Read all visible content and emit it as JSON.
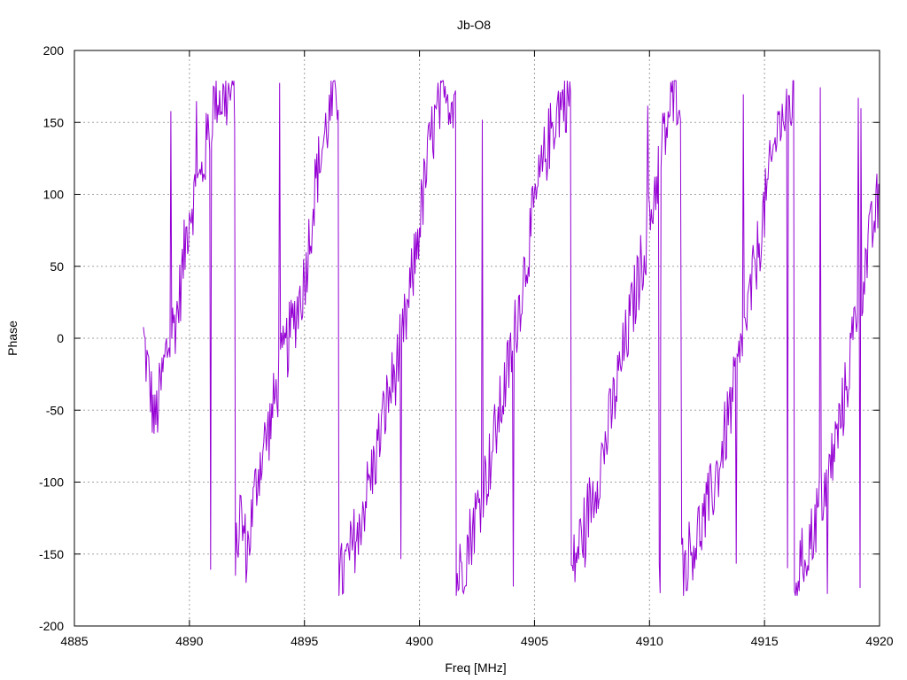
{
  "chart_data": {
    "type": "line",
    "title": "Jb-O8",
    "xlabel": "Freq [MHz]",
    "ylabel": "Phase",
    "xlim": [
      4885,
      4920
    ],
    "ylim": [
      -200,
      200
    ],
    "x_ticks": [
      "4885",
      "4890",
      "4895",
      "4900",
      "4905",
      "4910",
      "4915",
      "4920"
    ],
    "y_ticks": [
      "200",
      "150",
      "100",
      "50",
      "0",
      "-50",
      "-100",
      "-150",
      "-200"
    ],
    "grid": true,
    "line_color": "#9400d3",
    "series": [
      {
        "x": [
          4888.0,
          4888.5,
          4889.0,
          4889.5,
          4890.0,
          4890.5,
          4891.0,
          4891.2,
          4891.5,
          4891.9,
          4892.0,
          4892.2,
          4892.5,
          4893.0,
          4893.5,
          4894.0,
          4894.5,
          4895.0,
          4895.5,
          4896.0,
          4896.4,
          4896.5,
          4897.0,
          4897.5,
          4898.0,
          4898.5,
          4899.0,
          4899.5,
          4900.0,
          4900.5,
          4901.0,
          4901.5,
          4901.6,
          4902.0,
          4902.5,
          4903.0,
          4903.5,
          4904.0,
          4904.5,
          4905.0,
          4905.5,
          4906.0,
          4906.5,
          4906.6,
          4907.0,
          4907.5,
          4908.0,
          4908.5,
          4909.0,
          4909.5,
          4910.0,
          4910.5,
          4911.0,
          4911.3,
          4911.4,
          4912.0,
          4912.5,
          4913.0,
          4913.5,
          4914.0,
          4914.5,
          4915.0,
          4915.5,
          4916.0,
          4916.2,
          4916.3,
          4917.0,
          4917.5,
          4918.0,
          4918.5,
          4919.0,
          4919.5,
          4920.0
        ],
        "y": [
          0,
          -60,
          -10,
          20,
          90,
          110,
          160,
          170,
          165,
          170,
          -160,
          -120,
          -150,
          -90,
          -60,
          -20,
          10,
          40,
          110,
          150,
          170,
          -170,
          -150,
          -120,
          -90,
          -50,
          -20,
          20,
          80,
          140,
          165,
          170,
          -170,
          -150,
          -120,
          -90,
          -50,
          -10,
          40,
          90,
          130,
          160,
          170,
          -165,
          -140,
          -110,
          -80,
          -40,
          0,
          40,
          80,
          130,
          165,
          175,
          -160,
          -140,
          -120,
          -90,
          -50,
          -10,
          40,
          90,
          140,
          160,
          165,
          -170,
          -140,
          -110,
          -80,
          -40,
          20,
          60,
          100
        ]
      }
    ]
  }
}
